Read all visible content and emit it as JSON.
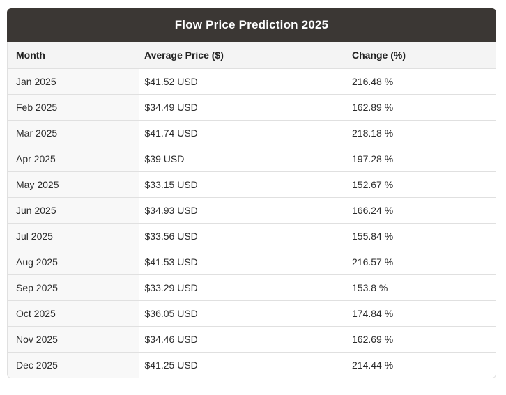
{
  "title": "Flow Price Prediction 2025",
  "table": {
    "columns": [
      "Month",
      "Average Price ($)",
      "Change (%)"
    ],
    "rows": [
      {
        "month": "Jan 2025",
        "price": "$41.52 USD",
        "change": "216.48 %"
      },
      {
        "month": "Feb 2025",
        "price": "$34.49 USD",
        "change": "162.89 %"
      },
      {
        "month": "Mar 2025",
        "price": "$41.74 USD",
        "change": "218.18 %"
      },
      {
        "month": "Apr 2025",
        "price": "$39 USD",
        "change": "197.28 %"
      },
      {
        "month": "May 2025",
        "price": "$33.15 USD",
        "change": "152.67 %"
      },
      {
        "month": "Jun 2025",
        "price": "$34.93 USD",
        "change": "166.24 %"
      },
      {
        "month": "Jul 2025",
        "price": "$33.56 USD",
        "change": "155.84 %"
      },
      {
        "month": "Aug 2025",
        "price": "$41.53 USD",
        "change": "216.57 %"
      },
      {
        "month": "Sep 2025",
        "price": "$33.29 USD",
        "change": "153.8 %"
      },
      {
        "month": "Oct 2025",
        "price": "$36.05 USD",
        "change": "174.84 %"
      },
      {
        "month": "Nov 2025",
        "price": "$34.46 USD",
        "change": "162.69 %"
      },
      {
        "month": "Dec 2025",
        "price": "$41.25 USD",
        "change": "214.44 %"
      }
    ]
  },
  "chart_data": {
    "type": "table",
    "title": "Flow Price Prediction 2025",
    "categories": [
      "Jan 2025",
      "Feb 2025",
      "Mar 2025",
      "Apr 2025",
      "May 2025",
      "Jun 2025",
      "Jul 2025",
      "Aug 2025",
      "Sep 2025",
      "Oct 2025",
      "Nov 2025",
      "Dec 2025"
    ],
    "series": [
      {
        "name": "Average Price ($)",
        "unit": "USD",
        "values": [
          41.52,
          34.49,
          41.74,
          39,
          33.15,
          34.93,
          33.56,
          41.53,
          33.29,
          36.05,
          34.46,
          41.25
        ]
      },
      {
        "name": "Change (%)",
        "unit": "%",
        "values": [
          216.48,
          162.89,
          218.18,
          197.28,
          152.67,
          166.24,
          155.84,
          216.57,
          153.8,
          174.84,
          162.69,
          214.44
        ]
      }
    ]
  },
  "colors": {
    "title_bar_bg": "#3b3734",
    "title_text": "#ffffff",
    "column_header_bg": "#f4f4f4",
    "month_column_bg": "#f8f8f8",
    "row_border": "#e0e0e0",
    "body_text": "#2b2b2b"
  }
}
